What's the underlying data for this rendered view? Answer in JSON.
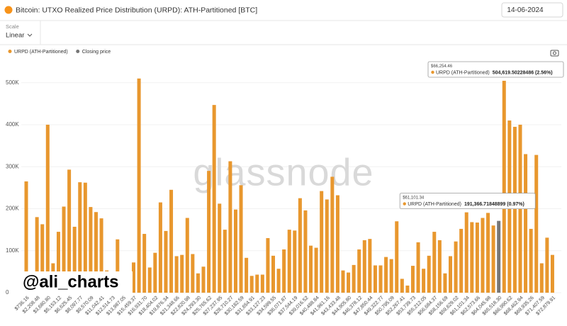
{
  "chart_data": {
    "type": "bar",
    "title": "Bitcoin: UTXO Realized Price Distribution (URPD): ATH-Partitioned [BTC]",
    "date": "14-06-2024",
    "scale_label": "Scale",
    "scale_value": "Linear",
    "watermark": "glassnode",
    "credit": "@ali_charts",
    "categories": [
      "$736.16",
      null,
      "$2,208.48",
      null,
      "$3,680.80",
      null,
      "$5,153.12",
      null,
      "$6,625.45",
      null,
      "$8,097.77",
      null,
      "$9,570.09",
      null,
      "$11,042.41",
      null,
      "$12,514.73",
      null,
      "$13,987.05",
      null,
      "$15,459.37",
      null,
      "$16,931.70",
      null,
      "$18,404.02",
      null,
      "$19,876.34",
      null,
      "$21,348.66",
      null,
      "$22,820.98",
      null,
      "$24,293.30",
      null,
      "$25,765.62",
      null,
      "$27,237.95",
      null,
      "$28,710.27",
      null,
      "$30,182.59",
      null,
      "$31,654.91",
      null,
      "$33,127.23",
      null,
      "$34,599.55",
      null,
      "$36,071.87",
      null,
      "$37,544.19",
      null,
      "$39,016.52",
      null,
      "$40,488.84",
      null,
      "$41,961.16",
      null,
      "$43,433.48",
      null,
      "$44,905.80",
      null,
      "$46,378.12",
      null,
      "$47,850.44",
      null,
      "$49,322.77",
      null,
      "$50,795.09",
      null,
      "$52,267.41",
      null,
      "$53,739.73",
      null,
      "$55,212.05",
      null,
      "$56,684.37",
      null,
      "$58,156.69",
      null,
      "$59,629.02",
      null,
      "$61,101.34",
      null,
      "$62,573.66",
      null,
      "$64,045.98",
      null,
      "$65,518.30",
      null,
      "$66,990.62",
      null,
      "$68,462.94",
      null,
      "$69,935.26",
      null,
      "$71,407.59",
      null,
      "$72,879.91"
    ],
    "series": [
      {
        "name": "URPD (ATH-Partitioned)",
        "color": "#e8972e",
        "values": [
          265000,
          0,
          180000,
          163000,
          400000,
          70000,
          145000,
          205000,
          293000,
          157000,
          263000,
          262000,
          204000,
          192000,
          177000,
          53000,
          0,
          127000,
          0,
          0,
          72000,
          510000,
          140000,
          60000,
          95000,
          215000,
          147000,
          245000,
          87000,
          90000,
          178000,
          92000,
          46000,
          62000,
          290000,
          447000,
          212000,
          150000,
          313000,
          198000,
          256000,
          83000,
          40000,
          43000,
          43000,
          130000,
          88000,
          57000,
          103000,
          150000,
          148000,
          225000,
          196000,
          112000,
          107000,
          242000,
          222000,
          276000,
          232000,
          53000,
          48000,
          66000,
          103000,
          125000,
          128000,
          65000,
          65000,
          85000,
          80000,
          170000,
          33000,
          17000,
          64000,
          120000,
          57000,
          88000,
          145000,
          125000,
          46000,
          87000,
          122000,
          152000,
          191366.71848899,
          168000,
          167000,
          178000,
          190000,
          160000,
          null,
          504619.50228486,
          410000,
          395000,
          400000,
          330000,
          152000,
          328000,
          70000,
          131000,
          90000
        ],
        "value_labels": [
          null,
          null,
          null,
          null,
          null,
          null,
          null,
          null,
          null,
          null,
          null,
          null,
          null,
          null,
          null,
          null,
          null,
          null,
          null,
          null,
          null,
          null,
          null,
          null,
          null,
          null,
          null,
          null,
          null,
          null,
          null,
          null,
          null,
          null,
          null,
          null,
          null,
          null,
          null,
          null,
          null,
          null,
          null,
          null,
          null,
          null,
          null,
          null,
          null,
          null,
          null,
          null,
          null,
          null,
          null,
          null,
          null,
          null,
          null,
          null,
          null,
          null,
          null,
          null,
          null,
          null,
          null,
          null,
          null,
          null,
          null,
          null,
          null,
          null,
          null,
          null,
          null,
          null,
          null,
          null,
          null,
          null,
          "191,366.71848899 (0.97%)",
          null,
          null,
          null,
          null,
          null,
          null,
          "504,619.50228486 (2.56%)",
          null,
          null,
          null,
          null,
          null,
          null,
          null,
          null,
          null
        ]
      },
      {
        "name": "Closing price",
        "color": "#777777",
        "values": [
          null,
          null,
          null,
          null,
          null,
          null,
          null,
          null,
          null,
          null,
          null,
          null,
          null,
          null,
          null,
          null,
          null,
          null,
          null,
          null,
          null,
          null,
          null,
          null,
          null,
          null,
          null,
          null,
          null,
          null,
          null,
          null,
          null,
          null,
          null,
          null,
          null,
          null,
          null,
          null,
          null,
          null,
          null,
          null,
          null,
          null,
          null,
          null,
          null,
          null,
          null,
          null,
          null,
          null,
          null,
          null,
          null,
          null,
          null,
          null,
          null,
          null,
          null,
          null,
          null,
          null,
          null,
          null,
          null,
          null,
          null,
          null,
          null,
          null,
          null,
          null,
          null,
          null,
          null,
          null,
          null,
          null,
          null,
          null,
          null,
          null,
          null,
          null,
          171000,
          null,
          null,
          null,
          null,
          null,
          null,
          null,
          null,
          null,
          null
        ]
      }
    ],
    "tooltip_titles": [
      null,
      null,
      null,
      null,
      null,
      null,
      null,
      null,
      null,
      null,
      null,
      null,
      null,
      null,
      null,
      null,
      null,
      null,
      null,
      null,
      null,
      null,
      null,
      null,
      null,
      null,
      null,
      null,
      null,
      null,
      null,
      null,
      null,
      null,
      null,
      null,
      null,
      null,
      null,
      null,
      null,
      null,
      null,
      null,
      null,
      null,
      null,
      null,
      null,
      null,
      null,
      null,
      null,
      null,
      null,
      null,
      null,
      null,
      null,
      null,
      null,
      null,
      null,
      null,
      null,
      null,
      null,
      null,
      null,
      null,
      null,
      null,
      null,
      null,
      null,
      null,
      null,
      null,
      null,
      null,
      null,
      null,
      "$61,101.34",
      null,
      null,
      null,
      null,
      null,
      null,
      "$66,254.46",
      null,
      null,
      null,
      null,
      null,
      null,
      null,
      null,
      null
    ],
    "ylim": [
      0,
      540000
    ],
    "yticks": [
      0,
      {
        "value": 100000,
        "label": "100K"
      },
      {
        "value": 200000,
        "label": "200K"
      },
      {
        "value": 300000,
        "label": "300K"
      },
      {
        "value": 400000,
        "label": "400K"
      },
      {
        "value": 500000,
        "label": "500K"
      }
    ],
    "grid": true
  }
}
